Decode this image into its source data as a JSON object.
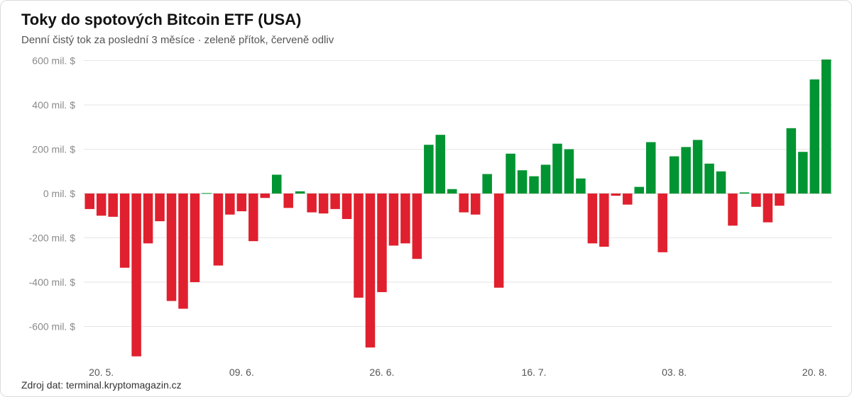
{
  "chart_data": {
    "type": "bar",
    "title": "Toky do spotových Bitcoin ETF (USA)",
    "subtitle": "Denní čistý tok za poslední 3 měsíce · zeleně přítok, červeně odliv",
    "source": "Zdroj dat: terminal.kryptomagazin.cz",
    "y_tick_values": [
      600,
      400,
      200,
      0,
      -200,
      -400,
      -600
    ],
    "y_tick_labels": [
      "600 mil. $",
      "400 mil. $",
      "200 mil. $",
      "0 mil. $",
      "-200 mil. $",
      "-400 mil. $",
      "-600 mil. $"
    ],
    "ylim": [
      -740,
      640
    ],
    "x_tick_labels": [
      {
        "label": "20. 5.",
        "index": 1
      },
      {
        "label": "09. 6.",
        "index": 13
      },
      {
        "label": "26. 6.",
        "index": 25
      },
      {
        "label": "16. 7.",
        "index": 38
      },
      {
        "label": "03. 8.",
        "index": 50
      },
      {
        "label": "20. 8.",
        "index": 62
      }
    ],
    "values": [
      -70,
      -100,
      -105,
      -335,
      -735,
      -225,
      -125,
      -485,
      -520,
      -400,
      2,
      -325,
      -95,
      -80,
      -215,
      -20,
      85,
      -65,
      10,
      -85,
      -90,
      -70,
      -115,
      -470,
      -695,
      -445,
      -235,
      -225,
      -295,
      220,
      265,
      20,
      -85,
      -95,
      88,
      -425,
      180,
      105,
      78,
      130,
      225,
      200,
      68,
      -225,
      -240,
      -10,
      -50,
      30,
      232,
      -265,
      168,
      210,
      242,
      135,
      100,
      -145,
      5,
      -60,
      -130,
      -55,
      295,
      188,
      515,
      605
    ],
    "colors": {
      "positive": "#009432",
      "negative": "#e0202e",
      "grid": "#e6e6e6",
      "zero_line": "#cfcfcf"
    },
    "grid": true,
    "legend": "none"
  }
}
